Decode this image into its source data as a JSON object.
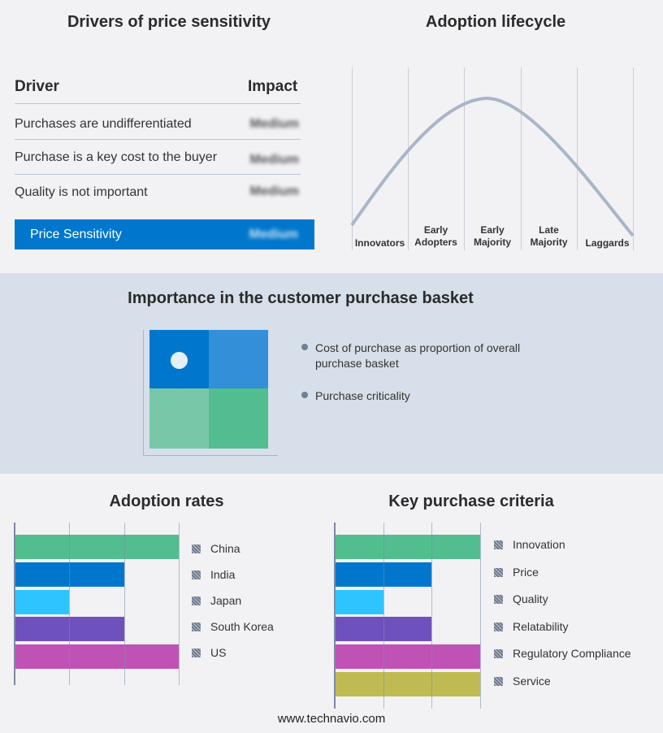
{
  "drivers": {
    "title": "Drivers of price sensitivity",
    "col_driver": "Driver",
    "col_impact": "Impact",
    "rows": [
      {
        "driver": "Purchases are undifferentiated",
        "impact": "Medium"
      },
      {
        "driver": "Purchase is a key cost to the buyer",
        "impact": "Medium"
      },
      {
        "driver": "Quality is not important",
        "impact": "Medium"
      }
    ],
    "summary": {
      "label": "Price Sensitivity",
      "impact": "Medium"
    },
    "accent": "#0077cc"
  },
  "lifecycle": {
    "title": "Adoption lifecycle",
    "stages": [
      "Innovators",
      "Early\nAdopters",
      "Early\nMajority",
      "Late\nMajority",
      "Laggards"
    ]
  },
  "basket": {
    "title": "Importance in the customer purchase basket",
    "legend": [
      "Cost of purchase as proportion of overall purchase basket",
      "Purchase criticality"
    ],
    "colors": [
      "#0077cc",
      "#3390d8",
      "#78c7a9",
      "#52bd8f"
    ]
  },
  "chart_data": [
    {
      "type": "bar",
      "orientation": "horizontal",
      "title": "Adoption rates",
      "categories": [
        "China",
        "India",
        "Japan",
        "South Korea",
        "US"
      ],
      "values": [
        3,
        2,
        1,
        2,
        3
      ],
      "xlim": [
        0,
        3
      ],
      "grid": true,
      "legend": "right",
      "colors": [
        "#52bd8f",
        "#0077cc",
        "#2ec4ff",
        "#6f51bd",
        "#c052b6"
      ]
    },
    {
      "type": "bar",
      "orientation": "horizontal",
      "title": "Key purchase criteria",
      "categories": [
        "Innovation",
        "Price",
        "Quality",
        "Relatability",
        "Regulatory Compliance",
        "Service"
      ],
      "values": [
        3,
        2,
        1,
        2,
        3,
        3
      ],
      "xlim": [
        0,
        3
      ],
      "grid": true,
      "legend": "right",
      "colors": [
        "#52bd8f",
        "#0077cc",
        "#2ec4ff",
        "#6f51bd",
        "#c052b6",
        "#bfbb52"
      ]
    }
  ],
  "footer": "www.technavio.com"
}
